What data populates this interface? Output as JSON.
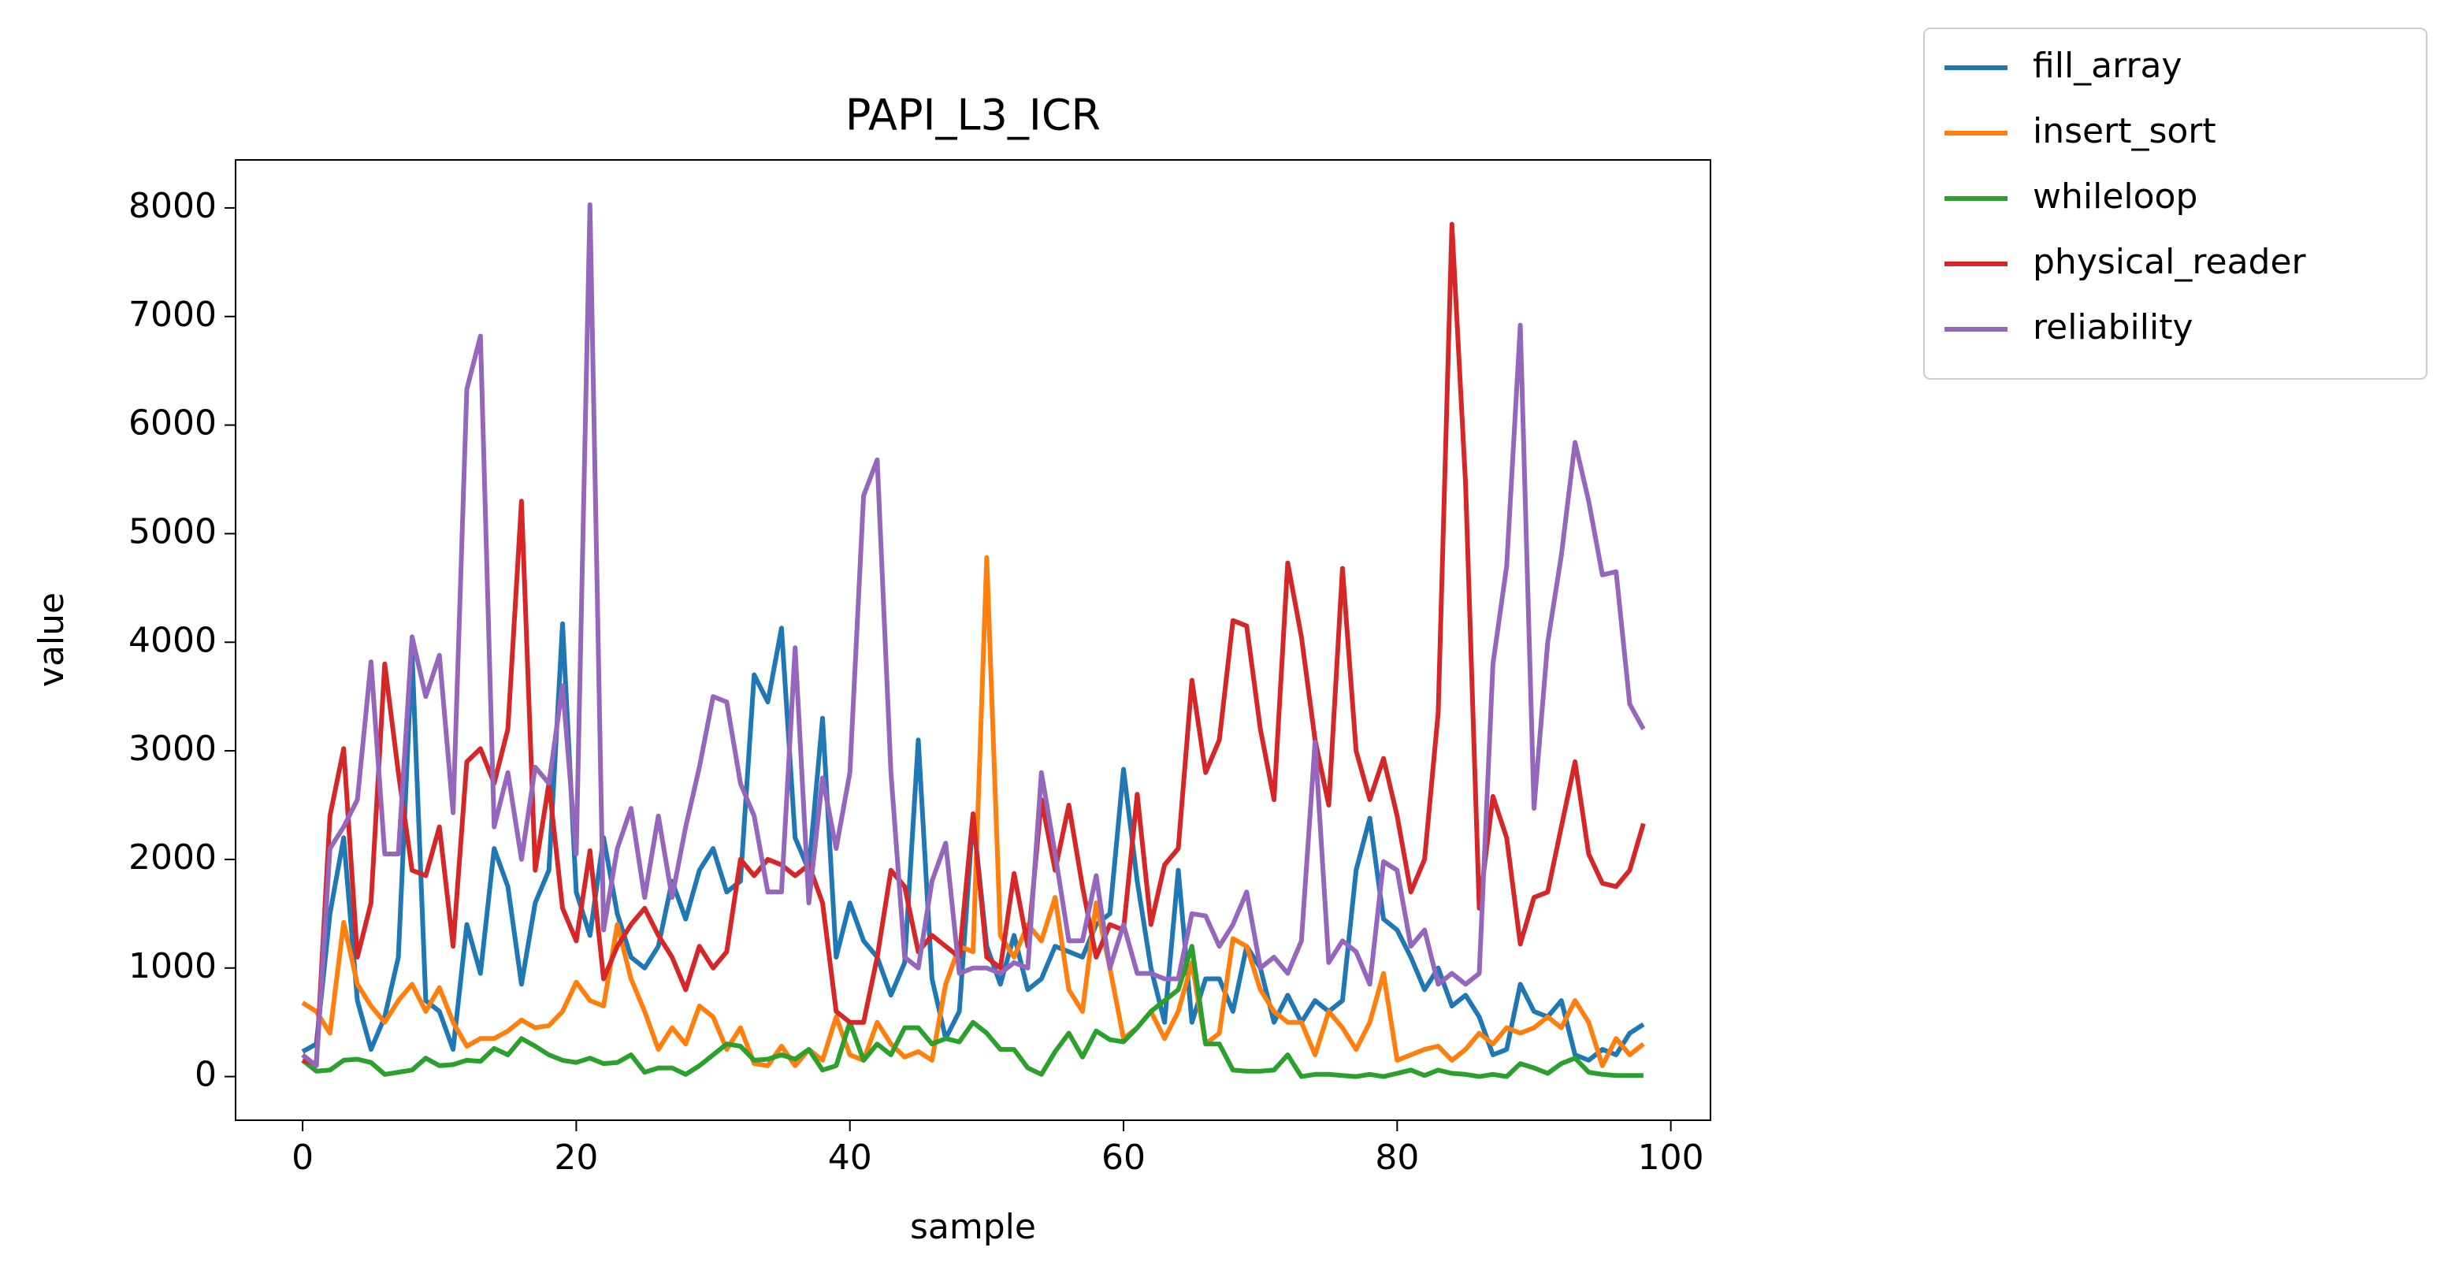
{
  "chart_data": {
    "type": "line",
    "title": "PAPI_L3_ICR",
    "xlabel": "sample",
    "ylabel": "value",
    "x": [
      0,
      1,
      2,
      3,
      4,
      5,
      6,
      7,
      8,
      9,
      10,
      11,
      12,
      13,
      14,
      15,
      16,
      17,
      18,
      19,
      20,
      21,
      22,
      23,
      24,
      25,
      26,
      27,
      28,
      29,
      30,
      31,
      32,
      33,
      34,
      35,
      36,
      37,
      38,
      39,
      40,
      41,
      42,
      43,
      44,
      45,
      46,
      47,
      48,
      49,
      50,
      51,
      52,
      53,
      54,
      55,
      56,
      57,
      58,
      59,
      60,
      61,
      62,
      63,
      64,
      65,
      66,
      67,
      68,
      69,
      70,
      71,
      72,
      73,
      74,
      75,
      76,
      77,
      78,
      79,
      80,
      81,
      82,
      83,
      84,
      85,
      86,
      87,
      88,
      89,
      90,
      91,
      92,
      93,
      94,
      95,
      96,
      97,
      98
    ],
    "series": [
      {
        "name": "fill_array",
        "color": "#1f77b4",
        "values": [
          230,
          300,
          1500,
          2200,
          700,
          250,
          550,
          1100,
          3900,
          700,
          600,
          250,
          1400,
          950,
          2100,
          1750,
          850,
          1600,
          1900,
          4170,
          1700,
          1300,
          2200,
          1500,
          1100,
          1000,
          1200,
          1800,
          1450,
          1900,
          2100,
          1700,
          1800,
          3700,
          3450,
          4130,
          2200,
          1900,
          3300,
          1100,
          1600,
          1250,
          1100,
          750,
          1050,
          3100,
          900,
          350,
          600,
          2400,
          1200,
          850,
          1300,
          800,
          900,
          1200,
          1150,
          1100,
          1400,
          1500,
          2830,
          1800,
          1000,
          500,
          1900,
          500,
          900,
          900,
          600,
          1200,
          1000,
          500,
          750,
          500,
          700,
          600,
          700,
          1900,
          2380,
          1450,
          1350,
          1100,
          800,
          1000,
          650,
          750,
          550,
          200,
          250,
          850,
          600,
          550,
          700,
          200,
          150,
          250,
          200,
          400,
          480
        ]
      },
      {
        "name": "insert_sort",
        "color": "#ff7f0e",
        "values": [
          680,
          600,
          400,
          1420,
          850,
          650,
          500,
          700,
          850,
          600,
          820,
          500,
          280,
          350,
          350,
          420,
          520,
          450,
          470,
          600,
          870,
          700,
          650,
          1400,
          900,
          600,
          250,
          450,
          300,
          650,
          550,
          250,
          450,
          120,
          100,
          280,
          100,
          250,
          150,
          550,
          200,
          150,
          500,
          300,
          180,
          230,
          150,
          850,
          1200,
          1150,
          4780,
          1300,
          1100,
          1400,
          1250,
          1650,
          800,
          600,
          1600,
          1000,
          350,
          450,
          600,
          350,
          600,
          1050,
          300,
          400,
          1270,
          1200,
          800,
          600,
          500,
          500,
          200,
          600,
          450,
          250,
          500,
          950,
          150,
          200,
          250,
          280,
          150,
          250,
          400,
          300,
          450,
          400,
          450,
          550,
          450,
          700,
          500,
          100,
          350,
          200,
          300
        ]
      },
      {
        "name": "whileloop",
        "color": "#2ca02c",
        "values": [
          150,
          50,
          60,
          150,
          160,
          130,
          20,
          40,
          60,
          170,
          100,
          110,
          150,
          140,
          260,
          200,
          350,
          280,
          200,
          150,
          130,
          170,
          120,
          130,
          200,
          40,
          80,
          80,
          20,
          100,
          200,
          300,
          280,
          150,
          160,
          200,
          160,
          250,
          60,
          100,
          500,
          150,
          300,
          200,
          450,
          450,
          300,
          350,
          320,
          500,
          400,
          250,
          250,
          80,
          20,
          230,
          400,
          180,
          420,
          340,
          320,
          450,
          600,
          700,
          800,
          1200,
          300,
          300,
          60,
          50,
          50,
          60,
          200,
          0,
          20,
          20,
          10,
          0,
          20,
          0,
          30,
          60,
          10,
          60,
          30,
          20,
          0,
          20,
          0,
          120,
          80,
          30,
          120,
          170,
          40,
          20,
          10,
          10,
          10
        ]
      },
      {
        "name": "physical_reader",
        "color": "#d62728",
        "values": [
          150,
          120,
          2400,
          3020,
          1100,
          1600,
          3800,
          2800,
          1900,
          1850,
          2300,
          1200,
          2900,
          3020,
          2700,
          3200,
          5300,
          1900,
          2700,
          1550,
          1250,
          2080,
          900,
          1200,
          1400,
          1550,
          1300,
          1100,
          800,
          1200,
          1000,
          1150,
          2000,
          1850,
          2000,
          1950,
          1850,
          1950,
          1600,
          600,
          500,
          500,
          1100,
          1900,
          1750,
          1150,
          1300,
          1200,
          1100,
          2420,
          1100,
          1000,
          1870,
          1200,
          2550,
          1900,
          2500,
          1750,
          1100,
          1400,
          1350,
          2600,
          1400,
          1950,
          2100,
          3650,
          2800,
          3100,
          4200,
          4150,
          3200,
          2550,
          4730,
          4050,
          3100,
          2500,
          4680,
          3000,
          2550,
          2930,
          2400,
          1700,
          2000,
          3350,
          7850,
          5450,
          1550,
          2580,
          2200,
          1220,
          1650,
          1700,
          2300,
          2900,
          2050,
          1780,
          1750,
          1900,
          2330
        ]
      },
      {
        "name": "reliability",
        "color": "#9467bd",
        "values": [
          200,
          100,
          2100,
          2300,
          2550,
          3820,
          2050,
          2050,
          4050,
          3500,
          3880,
          2430,
          6330,
          6820,
          2300,
          2800,
          2000,
          2850,
          2700,
          3600,
          2050,
          8030,
          1350,
          2100,
          2470,
          1650,
          2400,
          1650,
          2300,
          2850,
          3500,
          3450,
          2700,
          2400,
          1700,
          1700,
          3950,
          1600,
          2750,
          2100,
          2800,
          5350,
          5680,
          2800,
          1100,
          1000,
          1800,
          2150,
          950,
          1000,
          1000,
          950,
          1050,
          1000,
          2800,
          2050,
          1250,
          1250,
          1850,
          1000,
          1400,
          950,
          950,
          900,
          900,
          1500,
          1480,
          1200,
          1400,
          1700,
          1000,
          1100,
          950,
          1250,
          3080,
          1050,
          1250,
          1150,
          850,
          1980,
          1900,
          1200,
          1350,
          850,
          950,
          850,
          950,
          3800,
          4700,
          6920,
          2470,
          4000,
          4800,
          5840,
          5300,
          4620,
          4650,
          3430,
          3200
        ]
      }
    ],
    "xlim": [
      -4.9,
      102.9
    ],
    "xticks": [
      0,
      20,
      40,
      60,
      80,
      100
    ],
    "ylim": [
      -402,
      8442
    ],
    "yticks": [
      0,
      1000,
      2000,
      3000,
      4000,
      5000,
      6000,
      7000,
      8000
    ],
    "legend": "outside upper right"
  }
}
